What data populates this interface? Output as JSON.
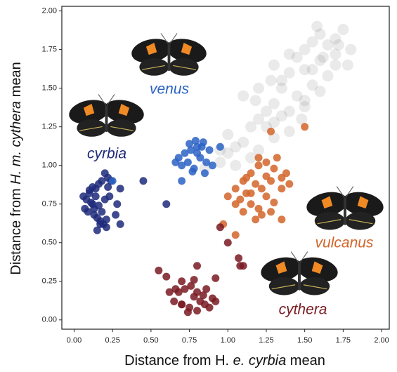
{
  "chart_data": {
    "type": "scatter",
    "xlabel_parts": [
      "Distance from H. ",
      "e.",
      " ",
      "cyrbia",
      " mean"
    ],
    "ylabel_parts": [
      "Distance from ",
      "H. m. cythera",
      " mean"
    ],
    "xlim": [
      -0.08,
      2.05
    ],
    "ylim": [
      -0.06,
      2.03
    ],
    "xticks": [
      {
        "value": 0,
        "label": "0.00"
      },
      {
        "value": 0.25,
        "label": "0.25"
      },
      {
        "value": 0.5,
        "label": "0.50"
      },
      {
        "value": 0.75,
        "label": "0.75"
      },
      {
        "value": 1,
        "label": "1.00"
      },
      {
        "value": 1.25,
        "label": "1.25"
      },
      {
        "value": 1.5,
        "label": "1.50"
      },
      {
        "value": 1.75,
        "label": "1.75"
      },
      {
        "value": 2,
        "label": "2.00"
      }
    ],
    "yticks": [
      {
        "value": 0,
        "label": "0.00"
      },
      {
        "value": 0.25,
        "label": "0.25"
      },
      {
        "value": 0.5,
        "label": "0.50"
      },
      {
        "value": 0.75,
        "label": "0.75"
      },
      {
        "value": 1,
        "label": "1.00"
      },
      {
        "value": 1.25,
        "label": "1.25"
      },
      {
        "value": 1.5,
        "label": "1.50"
      },
      {
        "value": 1.75,
        "label": "1.75"
      },
      {
        "value": 2,
        "label": "2.00"
      }
    ],
    "series": [
      {
        "color": "#555555",
        "x": [
          0.85,
          0.95,
          1.0,
          1.05,
          1.1,
          1.0,
          1.15,
          1.2,
          1.25,
          1.3,
          1.1,
          1.2,
          1.35,
          1.4,
          1.3,
          1.45,
          1.5,
          1.4,
          1.55,
          1.6,
          1.5,
          1.65,
          1.7,
          1.6,
          1.75,
          1.8,
          1.7,
          1.2,
          1.3,
          1.25,
          1.35,
          1.45,
          1.55,
          1.65,
          1.4,
          1.5,
          1.6,
          1.7,
          1.15,
          1.05,
          0.95,
          1.3,
          1.4,
          1.5,
          1.55,
          1.62,
          1.72,
          1.78,
          1.35,
          1.28,
          1.18,
          1.48,
          1.58
        ],
        "y": [
          0.98,
          1.02,
          1.08,
          1.12,
          1.15,
          1.2,
          1.25,
          1.3,
          1.35,
          1.4,
          1.45,
          1.5,
          1.55,
          1.6,
          1.65,
          1.7,
          1.75,
          1.72,
          1.8,
          1.85,
          1.62,
          1.78,
          1.82,
          1.68,
          1.88,
          1.75,
          1.65,
          1.1,
          1.18,
          1.25,
          1.32,
          1.45,
          1.52,
          1.58,
          1.22,
          1.38,
          1.48,
          1.72,
          1.05,
          1.0,
          1.1,
          1.28,
          1.35,
          1.42,
          1.62,
          1.7,
          1.78,
          1.65,
          1.5,
          1.55,
          1.42,
          1.3,
          1.9
        ]
      },
      {
        "name": "cyrbia",
        "color": "#1f2a7a",
        "x": [
          0.06,
          0.08,
          0.1,
          0.12,
          0.14,
          0.16,
          0.18,
          0.2,
          0.22,
          0.07,
          0.09,
          0.11,
          0.13,
          0.15,
          0.17,
          0.19,
          0.21,
          0.1,
          0.12,
          0.14,
          0.16,
          0.18,
          0.2,
          0.22,
          0.24,
          0.15,
          0.17,
          0.13,
          0.3,
          0.27,
          0.3,
          0.45,
          0.6,
          0.28,
          0.23,
          0.21
        ],
        "y": [
          0.8,
          0.78,
          0.82,
          0.75,
          0.85,
          0.88,
          0.9,
          0.95,
          0.92,
          0.72,
          0.7,
          0.76,
          0.68,
          0.66,
          0.64,
          0.62,
          0.6,
          0.84,
          0.86,
          0.8,
          0.74,
          0.7,
          0.78,
          0.86,
          0.9,
          0.58,
          0.62,
          0.72,
          0.85,
          0.68,
          0.62,
          0.9,
          0.75,
          0.75,
          0.8,
          0.65
        ]
      },
      {
        "name": "venus",
        "color": "#2a62c4",
        "x": [
          0.68,
          0.72,
          0.76,
          0.8,
          0.84,
          0.88,
          0.7,
          0.74,
          0.78,
          0.82,
          0.86,
          0.9,
          0.75,
          0.79,
          0.83,
          0.8,
          0.77,
          0.85,
          0.7,
          0.95,
          0.25,
          0.66
        ],
        "y": [
          1.05,
          1.08,
          1.1,
          1.12,
          1.15,
          1.1,
          1.0,
          1.02,
          0.98,
          1.05,
          1.02,
          1.0,
          1.14,
          1.16,
          1.12,
          1.08,
          0.96,
          0.95,
          0.9,
          1.12,
          0.9,
          1.02
        ]
      },
      {
        "name": "vulcanus",
        "color": "#d2652a",
        "x": [
          1.05,
          1.1,
          1.15,
          1.2,
          1.25,
          1.3,
          1.35,
          1.08,
          1.12,
          1.18,
          1.22,
          1.28,
          1.32,
          1.38,
          1.15,
          1.2,
          1.25,
          1.3,
          1.1,
          1.05,
          1.0,
          1.18,
          1.22,
          1.28,
          1.12,
          1.35,
          1.4,
          1.5,
          1.28,
          0.97,
          1.05,
          1.35,
          1.2,
          1.15,
          1.25
        ],
        "y": [
          0.85,
          0.9,
          0.95,
          1.0,
          1.02,
          0.98,
          0.92,
          0.78,
          0.82,
          0.88,
          0.85,
          0.9,
          1.05,
          0.95,
          0.75,
          0.72,
          0.8,
          0.76,
          0.7,
          0.75,
          0.8,
          0.65,
          0.68,
          0.7,
          0.92,
          0.85,
          0.88,
          1.25,
          1.22,
          0.62,
          0.55,
          0.65,
          1.05,
          0.82,
          0.93
        ]
      },
      {
        "name": "cythera",
        "color": "#7a1a22",
        "x": [
          0.65,
          0.7,
          0.75,
          0.8,
          0.85,
          0.9,
          0.68,
          0.72,
          0.78,
          0.82,
          0.88,
          0.74,
          0.76,
          0.8,
          0.84,
          0.7,
          0.66,
          0.62,
          0.86,
          0.92,
          0.55,
          0.6,
          0.7,
          0.92,
          1.0,
          1.08,
          1.1,
          1.07,
          0.8,
          0.78,
          0.95
        ],
        "y": [
          0.12,
          0.1,
          0.08,
          0.06,
          0.1,
          0.14,
          0.18,
          0.2,
          0.15,
          0.12,
          0.08,
          0.05,
          0.22,
          0.18,
          0.16,
          0.1,
          0.2,
          0.18,
          0.2,
          0.12,
          0.32,
          0.28,
          0.25,
          0.27,
          0.5,
          0.35,
          0.35,
          0.4,
          0.35,
          0.26,
          0.6
        ]
      }
    ]
  }
}
